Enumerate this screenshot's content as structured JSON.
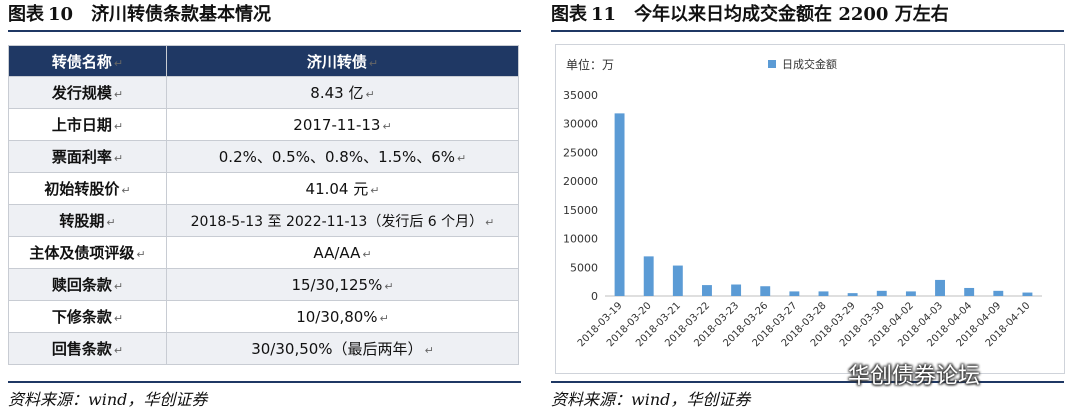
{
  "left_figure": {
    "label": "图表",
    "number": "10",
    "title": "济川转债条款基本情况",
    "table": {
      "header": [
        "转债名称",
        "济川转债"
      ],
      "rows": [
        [
          "发行规模",
          "8.43 亿"
        ],
        [
          "上市日期",
          "2017-11-13"
        ],
        [
          "票面利率",
          "0.2%、0.5%、0.8%、1.5%、6%"
        ],
        [
          "初始转股价",
          "41.04 元"
        ],
        [
          "转股期",
          "2018-5-13 至 2022-11-13（发行后 6 个月）"
        ],
        [
          "主体及债项评级",
          "AA/AA"
        ],
        [
          "赎回条款",
          "15/30,125%"
        ],
        [
          "下修条款",
          "10/30,80%"
        ],
        [
          "回售条款",
          "30/30,50%（最后两年）"
        ]
      ],
      "cell_mark": "↵"
    },
    "source": "资料来源：wind，华创证券"
  },
  "right_figure": {
    "label": "图表",
    "number": "11",
    "title": "今年以来日均成交金额在 2200 万左右",
    "source": "资料来源：wind，华创证券"
  },
  "watermark": "华创债券论坛",
  "colors": {
    "navy": "#1f3864",
    "bar": "#5b9bd5"
  },
  "chart_data": {
    "type": "bar",
    "unit_label": "单位：万",
    "categories": [
      "2018-03-19",
      "2018-03-20",
      "2018-03-21",
      "2018-03-22",
      "2018-03-23",
      "2018-03-26",
      "2018-03-27",
      "2018-03-28",
      "2018-03-29",
      "2018-03-30",
      "2018-04-02",
      "2018-04-03",
      "2018-04-04",
      "2018-04-09",
      "2018-04-10"
    ],
    "series": [
      {
        "name": "日成交金额",
        "values": [
          31800,
          6900,
          5300,
          1900,
          2000,
          1700,
          800,
          800,
          500,
          900,
          800,
          2800,
          1400,
          900,
          600
        ]
      }
    ],
    "yticks": [
      0,
      5000,
      10000,
      15000,
      20000,
      25000,
      30000,
      35000
    ],
    "ylim": [
      0,
      35000
    ],
    "legend": "top",
    "grid": false
  }
}
